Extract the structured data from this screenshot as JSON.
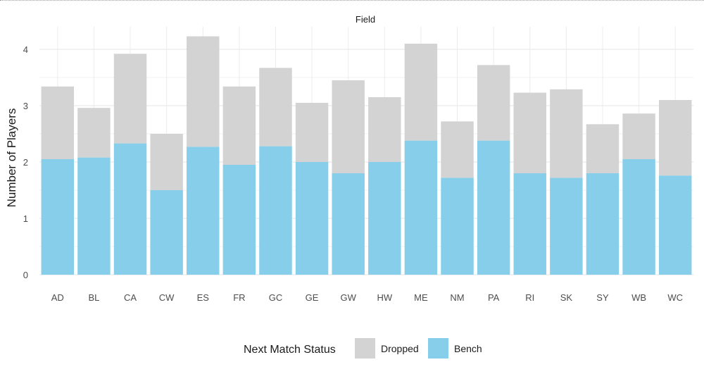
{
  "chart_data": {
    "type": "bar",
    "stacked": true,
    "title": "Field",
    "xlabel": "",
    "ylabel": "Number of Players",
    "ylim": [
      0,
      4.4
    ],
    "yticks": [
      0,
      1,
      2,
      3,
      4
    ],
    "grid": true,
    "legend_position": "bottom",
    "legend_title": "Next Match Status",
    "categories": [
      "AD",
      "BL",
      "CA",
      "CW",
      "ES",
      "FR",
      "GC",
      "GE",
      "GW",
      "HW",
      "ME",
      "NM",
      "PA",
      "RI",
      "SK",
      "SY",
      "WB",
      "WC"
    ],
    "series": [
      {
        "name": "Bench",
        "color": "#87ceeb",
        "values": [
          2.05,
          2.08,
          2.33,
          1.5,
          2.27,
          1.95,
          2.28,
          2.0,
          1.8,
          2.0,
          2.38,
          1.72,
          2.38,
          1.8,
          1.72,
          1.8,
          2.05,
          1.76
        ]
      },
      {
        "name": "Dropped",
        "color": "#d3d3d3",
        "values": [
          1.29,
          0.88,
          1.59,
          1.0,
          1.96,
          1.39,
          1.39,
          1.05,
          1.65,
          1.15,
          1.72,
          1.0,
          1.34,
          1.43,
          1.57,
          0.87,
          0.81,
          1.34
        ]
      }
    ],
    "legend_order": [
      "Dropped",
      "Bench"
    ]
  }
}
